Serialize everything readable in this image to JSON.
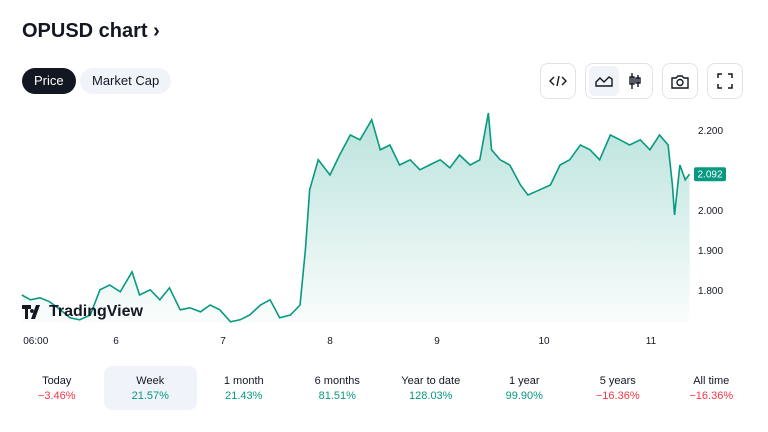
{
  "header": {
    "title": "OPUSD chart",
    "chevron": "›"
  },
  "tabs": [
    {
      "label": "Price",
      "active": true
    },
    {
      "label": "Market Cap",
      "active": false
    }
  ],
  "toolbar": [
    "code-icon",
    "area-chart-icon",
    "candlestick-icon",
    "camera-icon",
    "fullscreen-icon"
  ],
  "logo": "TradingView",
  "colors": {
    "line": "#089981",
    "positive": "#089981",
    "negative": "#f23645"
  },
  "chart_data": {
    "type": "area",
    "title": "",
    "xlabel": "",
    "ylabel": "",
    "x_ticks": [
      {
        "v": 5.25,
        "label": "06:00"
      },
      {
        "v": 6,
        "label": "6"
      },
      {
        "v": 7,
        "label": "7"
      },
      {
        "v": 8,
        "label": "8"
      },
      {
        "v": 9,
        "label": "9"
      },
      {
        "v": 10,
        "label": "10"
      },
      {
        "v": 11,
        "label": "11"
      }
    ],
    "y_ticks": [
      {
        "v": 1.8,
        "label": "1.800"
      },
      {
        "v": 1.9,
        "label": "1.900"
      },
      {
        "v": 2.0,
        "label": "2.000"
      },
      {
        "v": 2.1,
        "label": "2.100"
      },
      {
        "v": 2.2,
        "label": "2.200"
      }
    ],
    "last_price": "2.092",
    "grid": false,
    "x": [
      5.12,
      5.2,
      5.29,
      5.38,
      5.48,
      5.57,
      5.66,
      5.76,
      5.85,
      5.94,
      6.04,
      6.15,
      6.22,
      6.32,
      6.41,
      6.5,
      6.6,
      6.69,
      6.79,
      6.88,
      6.97,
      7.07,
      7.16,
      7.25,
      7.35,
      7.44,
      7.53,
      7.63,
      7.72,
      7.77,
      7.81,
      7.89,
      8.0,
      8.09,
      8.19,
      8.28,
      8.39,
      8.47,
      8.56,
      8.65,
      8.75,
      8.84,
      8.93,
      9.03,
      9.12,
      9.21,
      9.31,
      9.4,
      9.48,
      9.51,
      9.59,
      9.68,
      9.78,
      9.85,
      9.96,
      10.06,
      10.15,
      10.24,
      10.34,
      10.43,
      10.52,
      10.62,
      10.71,
      10.8,
      10.9,
      10.99,
      11.08,
      11.16,
      11.2,
      11.22,
      11.27,
      11.32,
      11.36
    ],
    "values": [
      1.79,
      1.778,
      1.783,
      1.773,
      1.753,
      1.733,
      1.728,
      1.74,
      1.803,
      1.815,
      1.798,
      1.848,
      1.79,
      1.803,
      1.778,
      1.808,
      1.753,
      1.758,
      1.748,
      1.765,
      1.753,
      1.723,
      1.728,
      1.74,
      1.765,
      1.778,
      1.733,
      1.74,
      1.765,
      1.903,
      2.053,
      2.128,
      2.09,
      2.14,
      2.19,
      2.178,
      2.228,
      2.153,
      2.165,
      2.115,
      2.128,
      2.103,
      2.115,
      2.128,
      2.108,
      2.14,
      2.115,
      2.128,
      2.245,
      2.153,
      2.128,
      2.115,
      2.065,
      2.04,
      2.053,
      2.065,
      2.115,
      2.128,
      2.165,
      2.153,
      2.128,
      2.19,
      2.178,
      2.165,
      2.178,
      2.153,
      2.19,
      2.165,
      2.065,
      1.99,
      2.115,
      2.078,
      2.092
    ]
  },
  "periods": [
    {
      "label": "Today",
      "value": "−3.46%",
      "sign": "neg"
    },
    {
      "label": "Week",
      "value": "21.57%",
      "sign": "pos",
      "selected": true
    },
    {
      "label": "1 month",
      "value": "21.43%",
      "sign": "pos"
    },
    {
      "label": "6 months",
      "value": "81.51%",
      "sign": "pos"
    },
    {
      "label": "Year to date",
      "value": "128.03%",
      "sign": "pos"
    },
    {
      "label": "1 year",
      "value": "99.90%",
      "sign": "pos"
    },
    {
      "label": "5 years",
      "value": "−16.36%",
      "sign": "neg"
    },
    {
      "label": "All time",
      "value": "−16.36%",
      "sign": "neg"
    }
  ]
}
